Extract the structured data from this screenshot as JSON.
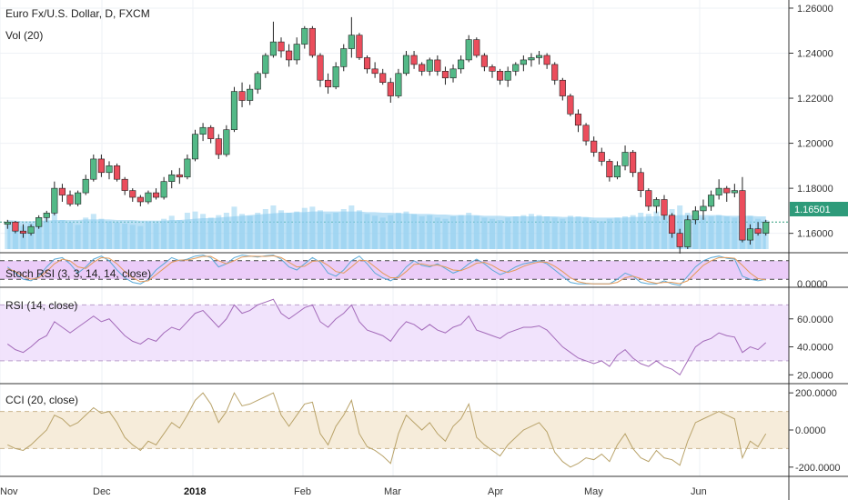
{
  "chart_data": {
    "type": "candlestick",
    "title": "Euro Fx/U.S. Dollar, D, FXCM",
    "volume_label": "Vol (20)",
    "colors": {
      "up": "#53b987",
      "down": "#eb4d5c",
      "wick": "#222222",
      "volume": "#9fd6f2",
      "volume_ma": "#85c9ee",
      "stoch_band": "#e9c6f7",
      "rsi_band": "#eedcfb",
      "rsi_line": "#a36ab9",
      "cci_band": "#f5ead6",
      "cci_line": "#b9a36a",
      "last_price_badge": "#2e9b7a"
    },
    "price_axis": {
      "ticks": [
        "1.26000",
        "1.24000",
        "1.22000",
        "1.20000",
        "1.18000",
        "1.16000"
      ],
      "ylim": [
        1.153,
        1.262
      ],
      "last_price": "1.16501"
    },
    "x_ticks": [
      "Nov",
      "Dec",
      "2018",
      "Feb",
      "Mar",
      "Apr",
      "May",
      "Jun"
    ],
    "candles": [
      [
        1.164,
        1.166,
        1.162,
        1.165
      ],
      [
        1.165,
        1.1655,
        1.16,
        1.161
      ],
      [
        1.161,
        1.164,
        1.158,
        1.16
      ],
      [
        1.16,
        1.164,
        1.159,
        1.163
      ],
      [
        1.163,
        1.168,
        1.162,
        1.167
      ],
      [
        1.167,
        1.17,
        1.165,
        1.169
      ],
      [
        1.169,
        1.183,
        1.168,
        1.18
      ],
      [
        1.18,
        1.182,
        1.174,
        1.177
      ],
      [
        1.177,
        1.179,
        1.172,
        1.173
      ],
      [
        1.173,
        1.179,
        1.172,
        1.178
      ],
      [
        1.178,
        1.186,
        1.177,
        1.184
      ],
      [
        1.184,
        1.195,
        1.183,
        1.193
      ],
      [
        1.193,
        1.195,
        1.185,
        1.187
      ],
      [
        1.187,
        1.192,
        1.184,
        1.19
      ],
      [
        1.19,
        1.191,
        1.183,
        1.184
      ],
      [
        1.184,
        1.185,
        1.177,
        1.179
      ],
      [
        1.179,
        1.18,
        1.174,
        1.176
      ],
      [
        1.176,
        1.177,
        1.172,
        1.174
      ],
      [
        1.174,
        1.179,
        1.173,
        1.178
      ],
      [
        1.178,
        1.18,
        1.175,
        1.176
      ],
      [
        1.176,
        1.185,
        1.175,
        1.183
      ],
      [
        1.183,
        1.188,
        1.18,
        1.186
      ],
      [
        1.186,
        1.189,
        1.182,
        1.185
      ],
      [
        1.185,
        1.195,
        1.184,
        1.193
      ],
      [
        1.193,
        1.206,
        1.192,
        1.204
      ],
      [
        1.204,
        1.209,
        1.201,
        1.207
      ],
      [
        1.207,
        1.208,
        1.2,
        1.202
      ],
      [
        1.202,
        1.204,
        1.193,
        1.195
      ],
      [
        1.195,
        1.208,
        1.194,
        1.206
      ],
      [
        1.206,
        1.225,
        1.205,
        1.223
      ],
      [
        1.223,
        1.227,
        1.216,
        1.219
      ],
      [
        1.219,
        1.226,
        1.217,
        1.224
      ],
      [
        1.224,
        1.232,
        1.222,
        1.231
      ],
      [
        1.231,
        1.24,
        1.229,
        1.239
      ],
      [
        1.239,
        1.254,
        1.238,
        1.245
      ],
      [
        1.245,
        1.247,
        1.238,
        1.241
      ],
      [
        1.241,
        1.244,
        1.234,
        1.237
      ],
      [
        1.237,
        1.247,
        1.235,
        1.244
      ],
      [
        1.244,
        1.252,
        1.242,
        1.251
      ],
      [
        1.251,
        1.252,
        1.238,
        1.239
      ],
      [
        1.239,
        1.24,
        1.225,
        1.228
      ],
      [
        1.228,
        1.231,
        1.222,
        1.225
      ],
      [
        1.225,
        1.236,
        1.224,
        1.234
      ],
      [
        1.234,
        1.244,
        1.232,
        1.242
      ],
      [
        1.242,
        1.256,
        1.238,
        1.248
      ],
      [
        1.248,
        1.249,
        1.237,
        1.238
      ],
      [
        1.238,
        1.239,
        1.231,
        1.233
      ],
      [
        1.233,
        1.236,
        1.229,
        1.231
      ],
      [
        1.231,
        1.233,
        1.226,
        1.227
      ],
      [
        1.227,
        1.229,
        1.218,
        1.221
      ],
      [
        1.221,
        1.233,
        1.22,
        1.231
      ],
      [
        1.231,
        1.241,
        1.23,
        1.239
      ],
      [
        1.239,
        1.241,
        1.233,
        1.235
      ],
      [
        1.235,
        1.236,
        1.23,
        1.232
      ],
      [
        1.232,
        1.238,
        1.23,
        1.237
      ],
      [
        1.237,
        1.239,
        1.23,
        1.232
      ],
      [
        1.232,
        1.234,
        1.226,
        1.229
      ],
      [
        1.229,
        1.235,
        1.227,
        1.233
      ],
      [
        1.233,
        1.239,
        1.231,
        1.237
      ],
      [
        1.237,
        1.248,
        1.236,
        1.246
      ],
      [
        1.246,
        1.247,
        1.238,
        1.239
      ],
      [
        1.239,
        1.24,
        1.232,
        1.234
      ],
      [
        1.234,
        1.235,
        1.229,
        1.232
      ],
      [
        1.232,
        1.233,
        1.226,
        1.228
      ],
      [
        1.228,
        1.234,
        1.225,
        1.232
      ],
      [
        1.232,
        1.236,
        1.23,
        1.235
      ],
      [
        1.235,
        1.239,
        1.232,
        1.237
      ],
      [
        1.237,
        1.24,
        1.234,
        1.238
      ],
      [
        1.238,
        1.241,
        1.235,
        1.239
      ],
      [
        1.239,
        1.24,
        1.233,
        1.235
      ],
      [
        1.235,
        1.236,
        1.226,
        1.228
      ],
      [
        1.228,
        1.229,
        1.219,
        1.221
      ],
      [
        1.221,
        1.222,
        1.212,
        1.213
      ],
      [
        1.213,
        1.215,
        1.205,
        1.208
      ],
      [
        1.208,
        1.209,
        1.199,
        1.201
      ],
      [
        1.201,
        1.203,
        1.194,
        1.196
      ],
      [
        1.196,
        1.198,
        1.19,
        1.192
      ],
      [
        1.192,
        1.193,
        1.183,
        1.185
      ],
      [
        1.185,
        1.192,
        1.184,
        1.19
      ],
      [
        1.19,
        1.199,
        1.188,
        1.196
      ],
      [
        1.196,
        1.197,
        1.185,
        1.187
      ],
      [
        1.187,
        1.189,
        1.176,
        1.179
      ],
      [
        1.179,
        1.18,
        1.17,
        1.172
      ],
      [
        1.172,
        1.176,
        1.169,
        1.175
      ],
      [
        1.175,
        1.177,
        1.166,
        1.168
      ],
      [
        1.168,
        1.169,
        1.158,
        1.16
      ],
      [
        1.16,
        1.162,
        1.151,
        1.154
      ],
      [
        1.154,
        1.168,
        1.153,
        1.166
      ],
      [
        1.166,
        1.172,
        1.164,
        1.17
      ],
      [
        1.17,
        1.175,
        1.166,
        1.172
      ],
      [
        1.172,
        1.179,
        1.17,
        1.177
      ],
      [
        1.177,
        1.184,
        1.175,
        1.18
      ],
      [
        1.18,
        1.181,
        1.174,
        1.178
      ],
      [
        1.178,
        1.182,
        1.176,
        1.179
      ],
      [
        1.179,
        1.185,
        1.156,
        1.157
      ],
      [
        1.157,
        1.164,
        1.155,
        1.162
      ],
      [
        1.162,
        1.165,
        1.159,
        1.16
      ],
      [
        1.16,
        1.166,
        1.159,
        1.165
      ]
    ],
    "volume": [
      40,
      35,
      38,
      42,
      50,
      55,
      60,
      48,
      44,
      40,
      52,
      58,
      50,
      46,
      44,
      42,
      40,
      38,
      45,
      43,
      50,
      55,
      48,
      60,
      62,
      58,
      52,
      56,
      60,
      70,
      58,
      55,
      60,
      66,
      72,
      64,
      60,
      62,
      68,
      70,
      64,
      58,
      60,
      66,
      72,
      64,
      58,
      55,
      52,
      56,
      60,
      62,
      58,
      54,
      56,
      52,
      50,
      54,
      56,
      60,
      55,
      52,
      50,
      48,
      52,
      54,
      56,
      58,
      56,
      54,
      52,
      50,
      55,
      54,
      52,
      48,
      46,
      50,
      52,
      54,
      56,
      60,
      58,
      62,
      64,
      66,
      72,
      60,
      55,
      52,
      54,
      56,
      54,
      52,
      60,
      55,
      50,
      48
    ],
    "volume_ma": [
      48,
      47,
      46,
      46,
      47,
      47,
      48,
      48,
      48,
      48,
      49,
      49,
      49,
      49,
      48,
      48,
      48,
      47,
      47,
      47,
      47,
      48,
      48,
      49,
      50,
      51,
      51,
      52,
      53,
      54,
      55,
      56,
      57,
      58,
      59,
      60,
      60,
      61,
      61,
      62,
      62,
      62,
      62,
      62,
      62,
      62,
      61,
      61,
      60,
      60,
      59,
      59,
      58,
      58,
      58,
      57,
      57,
      56,
      56,
      56,
      56,
      55,
      55,
      55,
      54,
      54,
      54,
      54,
      54,
      54,
      54,
      53,
      53,
      53,
      53,
      52,
      52,
      52,
      52,
      52,
      53,
      53,
      54,
      54,
      55,
      55,
      56,
      56,
      56,
      56,
      56,
      56,
      55,
      55,
      55,
      55,
      54,
      54
    ],
    "stoch_rsi": {
      "label": "Stoch RSI (3, 3, 14, 14, close)",
      "ticks": [
        "0.0000"
      ],
      "k": [
        60,
        40,
        20,
        15,
        30,
        60,
        85,
        90,
        70,
        40,
        60,
        85,
        95,
        80,
        50,
        25,
        10,
        5,
        20,
        50,
        70,
        90,
        80,
        85,
        95,
        98,
        90,
        60,
        70,
        90,
        98,
        95,
        92,
        96,
        98,
        85,
        60,
        50,
        70,
        90,
        75,
        40,
        30,
        50,
        80,
        95,
        70,
        40,
        25,
        15,
        30,
        60,
        80,
        65,
        60,
        70,
        55,
        40,
        50,
        70,
        85,
        70,
        50,
        35,
        45,
        60,
        70,
        75,
        80,
        70,
        50,
        30,
        10,
        5,
        5,
        5,
        5,
        5,
        20,
        40,
        30,
        10,
        5,
        5,
        15,
        5,
        0,
        30,
        60,
        80,
        90,
        95,
        88,
        85,
        30,
        20,
        15,
        20
      ],
      "d": [
        55,
        45,
        30,
        20,
        25,
        45,
        70,
        85,
        80,
        60,
        55,
        75,
        90,
        88,
        70,
        45,
        25,
        12,
        15,
        35,
        55,
        75,
        82,
        82,
        88,
        94,
        94,
        80,
        70,
        80,
        92,
        95,
        94,
        94,
        96,
        90,
        75,
        60,
        62,
        78,
        80,
        65,
        45,
        40,
        60,
        82,
        80,
        60,
        40,
        25,
        25,
        45,
        68,
        70,
        64,
        66,
        60,
        50,
        48,
        58,
        72,
        75,
        65,
        50,
        42,
        50,
        62,
        70,
        76,
        75,
        62,
        45,
        25,
        12,
        7,
        5,
        5,
        5,
        10,
        25,
        30,
        22,
        12,
        7,
        10,
        10,
        6,
        15,
        40,
        65,
        80,
        90,
        90,
        88,
        65,
        40,
        22,
        18
      ]
    },
    "rsi": {
      "label": "RSI (14, close)",
      "ticks": [
        "60.0000",
        "40.0000",
        "20.0000"
      ],
      "ylim": [
        15,
        80
      ],
      "values": [
        42,
        38,
        36,
        40,
        45,
        48,
        58,
        54,
        50,
        54,
        58,
        62,
        58,
        60,
        54,
        48,
        44,
        42,
        46,
        44,
        50,
        54,
        52,
        58,
        64,
        66,
        60,
        54,
        60,
        70,
        64,
        66,
        70,
        72,
        74,
        64,
        60,
        64,
        68,
        70,
        58,
        54,
        60,
        64,
        70,
        58,
        52,
        50,
        48,
        44,
        52,
        58,
        56,
        52,
        56,
        52,
        50,
        54,
        56,
        62,
        52,
        50,
        48,
        46,
        50,
        52,
        54,
        54,
        55,
        52,
        46,
        40,
        36,
        32,
        30,
        28,
        30,
        26,
        34,
        38,
        32,
        28,
        26,
        30,
        26,
        24,
        20,
        30,
        40,
        44,
        46,
        50,
        48,
        47,
        36,
        40,
        38,
        43
      ]
    },
    "cci": {
      "label": "CCI (20, close)",
      "ticks": [
        "200.0000",
        "0.0000",
        "-200.0000"
      ],
      "ylim": [
        -240,
        240
      ],
      "values": [
        -80,
        -100,
        -110,
        -80,
        -40,
        0,
        80,
        60,
        20,
        40,
        80,
        120,
        90,
        100,
        40,
        -40,
        -80,
        -110,
        -60,
        -80,
        -20,
        40,
        10,
        80,
        160,
        200,
        140,
        40,
        100,
        200,
        130,
        140,
        160,
        180,
        200,
        80,
        20,
        80,
        140,
        150,
        -20,
        -80,
        20,
        80,
        160,
        -20,
        -90,
        -110,
        -140,
        -180,
        -20,
        80,
        40,
        0,
        40,
        -20,
        -60,
        20,
        60,
        140,
        -40,
        -80,
        -110,
        -140,
        -80,
        -40,
        0,
        20,
        40,
        -10,
        -120,
        -170,
        -200,
        -180,
        -150,
        -160,
        -130,
        -170,
        -80,
        -20,
        -100,
        -150,
        -170,
        -110,
        -150,
        -160,
        -190,
        -60,
        40,
        60,
        80,
        100,
        80,
        60,
        -150,
        -60,
        -90,
        -20
      ]
    }
  }
}
